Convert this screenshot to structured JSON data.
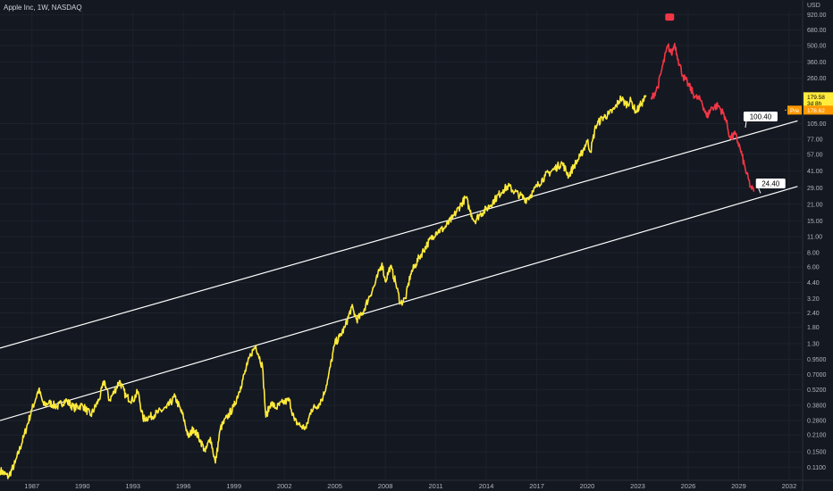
{
  "header": {
    "title": "Apple Inc, 1W, NASDAQ"
  },
  "currency": "USD",
  "price_tags": {
    "last": "179.58",
    "countdown": "3d 8h",
    "pre_label": "Pre",
    "pre_value": "178.62"
  },
  "chart_data": {
    "type": "line",
    "y_scale": "log",
    "ylim": [
      0.085,
      1000
    ],
    "xlim": [
      1985.1,
      2032.8
    ],
    "y_ticks": [
      "920.00",
      "680.00",
      "500.00",
      "360.00",
      "260.00",
      "179.58",
      "105.00",
      "77.00",
      "57.00",
      "41.00",
      "29.00",
      "21.00",
      "15.00",
      "11.00",
      "8.00",
      "6.00",
      "4.40",
      "3.20",
      "2.40",
      "1.80",
      "1.30",
      "0.9500",
      "0.7000",
      "0.5200",
      "0.3800",
      "0.2800",
      "0.2100",
      "0.1500",
      "0.1100"
    ],
    "x_ticks": [
      "1987",
      "1990",
      "1993",
      "1996",
      "1999",
      "2002",
      "2005",
      "2008",
      "2011",
      "2014",
      "2017",
      "2020",
      "2023",
      "2026",
      "2029",
      "2032"
    ],
    "series": [
      {
        "role": "historical",
        "color": "#ffeb3b",
        "points": [
          [
            1985.1,
            0.104
          ],
          [
            1985.6,
            0.091
          ],
          [
            1986.0,
            0.12
          ],
          [
            1986.5,
            0.2
          ],
          [
            1987.0,
            0.35
          ],
          [
            1987.4,
            0.52
          ],
          [
            1987.7,
            0.38
          ],
          [
            1988.0,
            0.4
          ],
          [
            1988.5,
            0.37
          ],
          [
            1989.0,
            0.42
          ],
          [
            1989.5,
            0.36
          ],
          [
            1990.0,
            0.38
          ],
          [
            1990.5,
            0.31
          ],
          [
            1991.0,
            0.43
          ],
          [
            1991.3,
            0.62
          ],
          [
            1991.6,
            0.42
          ],
          [
            1991.9,
            0.5
          ],
          [
            1992.2,
            0.62
          ],
          [
            1992.6,
            0.45
          ],
          [
            1993.0,
            0.42
          ],
          [
            1993.3,
            0.5
          ],
          [
            1993.6,
            0.29
          ],
          [
            1994.0,
            0.3
          ],
          [
            1994.5,
            0.33
          ],
          [
            1995.0,
            0.36
          ],
          [
            1995.5,
            0.45
          ],
          [
            1996.0,
            0.3
          ],
          [
            1996.3,
            0.2
          ],
          [
            1996.6,
            0.24
          ],
          [
            1997.0,
            0.19
          ],
          [
            1997.3,
            0.15
          ],
          [
            1997.6,
            0.2
          ],
          [
            1997.9,
            0.12
          ],
          [
            1998.2,
            0.24
          ],
          [
            1998.6,
            0.3
          ],
          [
            1999.0,
            0.37
          ],
          [
            1999.4,
            0.55
          ],
          [
            1999.8,
            0.85
          ],
          [
            2000.0,
            1.05
          ],
          [
            2000.3,
            1.25
          ],
          [
            2000.7,
            0.82
          ],
          [
            2000.9,
            0.3
          ],
          [
            2001.2,
            0.4
          ],
          [
            2001.5,
            0.36
          ],
          [
            2001.9,
            0.4
          ],
          [
            2002.3,
            0.42
          ],
          [
            2002.6,
            0.28
          ],
          [
            2003.0,
            0.25
          ],
          [
            2003.3,
            0.24
          ],
          [
            2003.6,
            0.35
          ],
          [
            2004.0,
            0.38
          ],
          [
            2004.3,
            0.45
          ],
          [
            2004.6,
            0.65
          ],
          [
            2005.0,
            1.3
          ],
          [
            2005.3,
            1.5
          ],
          [
            2005.6,
            1.8
          ],
          [
            2006.0,
            2.7
          ],
          [
            2006.3,
            2.1
          ],
          [
            2006.6,
            2.3
          ],
          [
            2007.0,
            3.2
          ],
          [
            2007.4,
            4.3
          ],
          [
            2007.8,
            6.5
          ],
          [
            2008.0,
            4.5
          ],
          [
            2008.3,
            6.1
          ],
          [
            2008.6,
            4.5
          ],
          [
            2008.9,
            2.9
          ],
          [
            2009.2,
            3.2
          ],
          [
            2009.5,
            5.2
          ],
          [
            2010.0,
            7.2
          ],
          [
            2010.5,
            9.5
          ],
          [
            2011.0,
            12.0
          ],
          [
            2011.5,
            13.0
          ],
          [
            2012.0,
            16.0
          ],
          [
            2012.5,
            21.0
          ],
          [
            2012.8,
            24.0
          ],
          [
            2013.0,
            19.0
          ],
          [
            2013.3,
            15.0
          ],
          [
            2013.6,
            17.0
          ],
          [
            2014.0,
            19.0
          ],
          [
            2014.5,
            23.0
          ],
          [
            2015.0,
            28.0
          ],
          [
            2015.3,
            30.0
          ],
          [
            2015.7,
            27.0
          ],
          [
            2016.0,
            25.0
          ],
          [
            2016.4,
            23.0
          ],
          [
            2016.8,
            27.0
          ],
          [
            2017.0,
            30.0
          ],
          [
            2017.5,
            37.0
          ],
          [
            2018.0,
            42.0
          ],
          [
            2018.5,
            48.0
          ],
          [
            2018.9,
            37.0
          ],
          [
            2019.2,
            45.0
          ],
          [
            2019.6,
            55.0
          ],
          [
            2020.0,
            75.0
          ],
          [
            2020.2,
            60.0
          ],
          [
            2020.5,
            100.0
          ],
          [
            2020.9,
            118.0
          ],
          [
            2021.3,
            127.0
          ],
          [
            2021.6,
            140.0
          ],
          [
            2022.0,
            175.0
          ],
          [
            2022.3,
            155.0
          ],
          [
            2022.6,
            165.0
          ],
          [
            2022.9,
            132.0
          ],
          [
            2023.2,
            155.0
          ],
          [
            2023.5,
            180.0
          ]
        ]
      },
      {
        "role": "projection",
        "color": "#f23645",
        "points": [
          [
            2023.8,
            170.0
          ],
          [
            2024.2,
            220.0
          ],
          [
            2024.5,
            340.0
          ],
          [
            2024.8,
            500.0
          ],
          [
            2025.0,
            420.0
          ],
          [
            2025.2,
            520.0
          ],
          [
            2025.4,
            380.0
          ],
          [
            2025.7,
            270.0
          ],
          [
            2026.0,
            230.0
          ],
          [
            2026.4,
            180.0
          ],
          [
            2026.8,
            165.0
          ],
          [
            2027.1,
            120.0
          ],
          [
            2027.4,
            145.0
          ],
          [
            2027.8,
            150.0
          ],
          [
            2028.2,
            120.0
          ],
          [
            2028.5,
            78.0
          ],
          [
            2028.8,
            85.0
          ],
          [
            2029.1,
            63.0
          ],
          [
            2029.4,
            42.0
          ],
          [
            2029.7,
            30.0
          ],
          [
            2029.9,
            27.0
          ]
        ]
      }
    ],
    "trendlines": [
      {
        "from": [
          1985.1,
          1.19
        ],
        "to": [
          2032.5,
          111.0
        ],
        "label": "100.40",
        "label_at": [
          2030.3,
          120.0
        ],
        "pointer": [
          2029.4,
          97.0
        ]
      },
      {
        "from": [
          1985.1,
          0.28
        ],
        "to": [
          2032.5,
          30.0
        ],
        "label": "24.40",
        "label_at": [
          2030.9,
          31.5
        ],
        "pointer": [
          2030.3,
          26.2
        ]
      }
    ],
    "marker": {
      "at": [
        2024.9,
        880.0
      ],
      "color": "#f23645"
    }
  }
}
